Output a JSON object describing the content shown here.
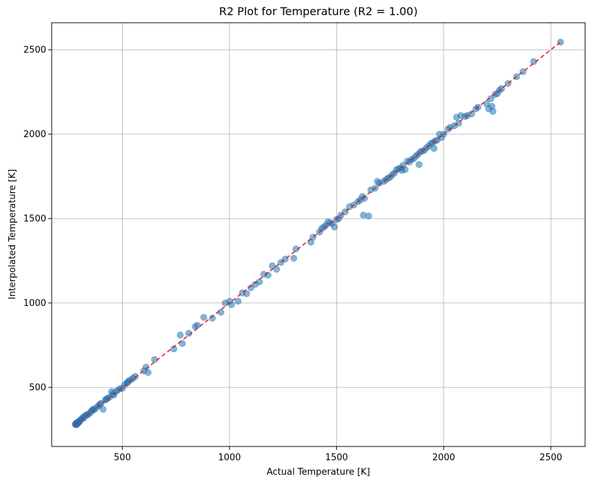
{
  "chart_data": {
    "type": "scatter",
    "title": "R2 Plot for Temperature (R2 = 1.00)",
    "xlabel": "Actual Temperature [K]",
    "ylabel": "Interpolated Temperature [K]",
    "xlim": [
      170,
      2660
    ],
    "ylim": [
      150,
      2660
    ],
    "xticks": [
      500,
      1000,
      1500,
      2000,
      2500
    ],
    "yticks": [
      500,
      1000,
      1500,
      2000,
      2500
    ],
    "grid": true,
    "point_color": "#1f77b4",
    "line_color": "#e31a1c",
    "reference_line": {
      "x": [
        280,
        2545
      ],
      "y": [
        280,
        2545
      ]
    },
    "points": [
      [
        280,
        280
      ],
      [
        282,
        285
      ],
      [
        283,
        283
      ],
      [
        285,
        278
      ],
      [
        286,
        290
      ],
      [
        288,
        282
      ],
      [
        290,
        292
      ],
      [
        292,
        287
      ],
      [
        295,
        296
      ],
      [
        298,
        300
      ],
      [
        300,
        295
      ],
      [
        305,
        308
      ],
      [
        310,
        312
      ],
      [
        315,
        322
      ],
      [
        320,
        318
      ],
      [
        325,
        330
      ],
      [
        330,
        335
      ],
      [
        335,
        340
      ],
      [
        340,
        338
      ],
      [
        350,
        350
      ],
      [
        355,
        360
      ],
      [
        360,
        365
      ],
      [
        365,
        372
      ],
      [
        370,
        368
      ],
      [
        380,
        383
      ],
      [
        390,
        392
      ],
      [
        395,
        400
      ],
      [
        400,
        405
      ],
      [
        410,
        370
      ],
      [
        420,
        425
      ],
      [
        425,
        430
      ],
      [
        430,
        435
      ],
      [
        440,
        442
      ],
      [
        450,
        475
      ],
      [
        455,
        460
      ],
      [
        460,
        455
      ],
      [
        470,
        475
      ],
      [
        480,
        485
      ],
      [
        490,
        492
      ],
      [
        500,
        495
      ],
      [
        510,
        515
      ],
      [
        520,
        525
      ],
      [
        525,
        530
      ],
      [
        530,
        540
      ],
      [
        540,
        545
      ],
      [
        550,
        555
      ],
      [
        560,
        565
      ],
      [
        600,
        598
      ],
      [
        610,
        620
      ],
      [
        620,
        588
      ],
      [
        650,
        665
      ],
      [
        740,
        728
      ],
      [
        770,
        810
      ],
      [
        780,
        760
      ],
      [
        810,
        820
      ],
      [
        840,
        860
      ],
      [
        850,
        868
      ],
      [
        880,
        915
      ],
      [
        920,
        910
      ],
      [
        960,
        945
      ],
      [
        980,
        1000
      ],
      [
        1000,
        1010
      ],
      [
        1010,
        990
      ],
      [
        1040,
        1010
      ],
      [
        1060,
        1060
      ],
      [
        1080,
        1055
      ],
      [
        1100,
        1090
      ],
      [
        1120,
        1110
      ],
      [
        1140,
        1125
      ],
      [
        1160,
        1170
      ],
      [
        1180,
        1165
      ],
      [
        1200,
        1220
      ],
      [
        1220,
        1200
      ],
      [
        1240,
        1240
      ],
      [
        1260,
        1260
      ],
      [
        1300,
        1265
      ],
      [
        1310,
        1320
      ],
      [
        1380,
        1360
      ],
      [
        1390,
        1390
      ],
      [
        1420,
        1420
      ],
      [
        1430,
        1440
      ],
      [
        1440,
        1450
      ],
      [
        1450,
        1460
      ],
      [
        1460,
        1480
      ],
      [
        1470,
        1475
      ],
      [
        1480,
        1470
      ],
      [
        1490,
        1450
      ],
      [
        1500,
        1495
      ],
      [
        1510,
        1500
      ],
      [
        1520,
        1520
      ],
      [
        1540,
        1540
      ],
      [
        1560,
        1570
      ],
      [
        1580,
        1580
      ],
      [
        1600,
        1600
      ],
      [
        1610,
        1610
      ],
      [
        1620,
        1630
      ],
      [
        1630,
        1620
      ],
      [
        1625,
        1520
      ],
      [
        1650,
        1515
      ],
      [
        1660,
        1670
      ],
      [
        1680,
        1680
      ],
      [
        1690,
        1720
      ],
      [
        1700,
        1710
      ],
      [
        1720,
        1720
      ],
      [
        1730,
        1730
      ],
      [
        1740,
        1740
      ],
      [
        1750,
        1745
      ],
      [
        1760,
        1760
      ],
      [
        1770,
        1770
      ],
      [
        1780,
        1790
      ],
      [
        1790,
        1795
      ],
      [
        1800,
        1800
      ],
      [
        1805,
        1785
      ],
      [
        1810,
        1815
      ],
      [
        1820,
        1790
      ],
      [
        1830,
        1840
      ],
      [
        1840,
        1835
      ],
      [
        1850,
        1850
      ],
      [
        1860,
        1855
      ],
      [
        1870,
        1870
      ],
      [
        1880,
        1880
      ],
      [
        1885,
        1820
      ],
      [
        1890,
        1895
      ],
      [
        1900,
        1900
      ],
      [
        1910,
        1905
      ],
      [
        1920,
        1920
      ],
      [
        1930,
        1930
      ],
      [
        1940,
        1945
      ],
      [
        1950,
        1950
      ],
      [
        1955,
        1915
      ],
      [
        1960,
        1960
      ],
      [
        1970,
        1965
      ],
      [
        1980,
        2000
      ],
      [
        1990,
        1980
      ],
      [
        2000,
        2000
      ],
      [
        2020,
        2030
      ],
      [
        2030,
        2040
      ],
      [
        2050,
        2050
      ],
      [
        2060,
        2100
      ],
      [
        2070,
        2065
      ],
      [
        2080,
        2110
      ],
      [
        2100,
        2105
      ],
      [
        2110,
        2110
      ],
      [
        2130,
        2120
      ],
      [
        2150,
        2150
      ],
      [
        2160,
        2160
      ],
      [
        2200,
        2180
      ],
      [
        2210,
        2150
      ],
      [
        2220,
        2210
      ],
      [
        2225,
        2165
      ],
      [
        2230,
        2135
      ],
      [
        2240,
        2235
      ],
      [
        2250,
        2240
      ],
      [
        2260,
        2260
      ],
      [
        2270,
        2270
      ],
      [
        2300,
        2300
      ],
      [
        2340,
        2340
      ],
      [
        2370,
        2370
      ],
      [
        2420,
        2430
      ],
      [
        2545,
        2545
      ]
    ]
  }
}
